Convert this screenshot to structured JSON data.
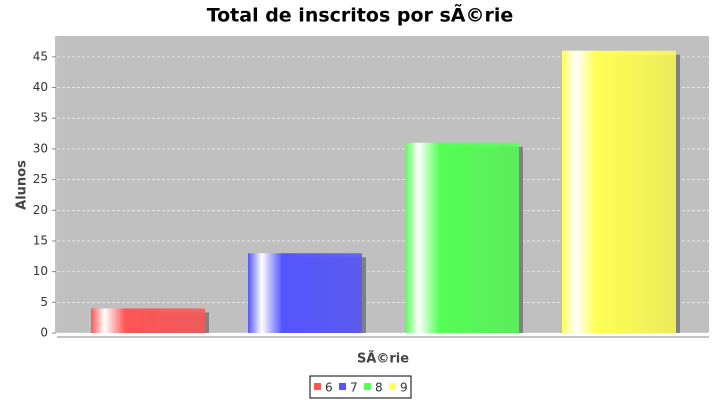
{
  "chart_data": {
    "type": "bar",
    "title": "Total de inscritos por sÃ©rie",
    "x_label": "SÃ©rie",
    "y_label": "Alunos",
    "categories": [
      null
    ],
    "series": [
      {
        "name": "6",
        "color": "#ff5555",
        "values": [
          4
        ]
      },
      {
        "name": "7",
        "color": "#5555ff",
        "values": [
          13
        ]
      },
      {
        "name": "8",
        "color": "#55ff55",
        "values": [
          31
        ]
      },
      {
        "name": "9",
        "color": "#ffff55",
        "values": [
          46
        ]
      }
    ],
    "ylim": [
      0,
      48.4
    ],
    "yticks": [
      0,
      5,
      10,
      15,
      20,
      25,
      30,
      35,
      40,
      45
    ],
    "grid": true,
    "legend": "bottom"
  }
}
